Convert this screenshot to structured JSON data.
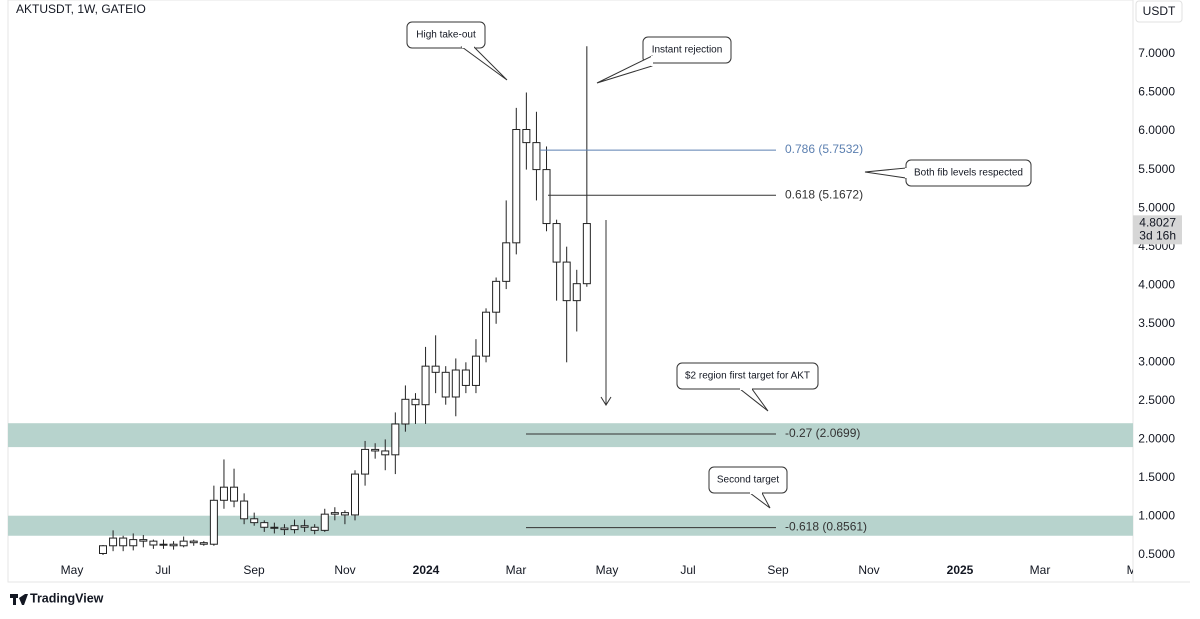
{
  "chart_data": {
    "type": "candlestick",
    "title": "AKTUSDT, 1W, GATEIO",
    "currency_button": "USDT",
    "last_price": 4.8027,
    "countdown": "3d 16h",
    "brand": "TradingView",
    "ylim": [
      0.15,
      7.7
    ],
    "yticks": [
      {
        "value": 0.5,
        "label": "0.5000"
      },
      {
        "value": 1.0,
        "label": "1.0000"
      },
      {
        "value": 1.5,
        "label": "1.5000"
      },
      {
        "value": 2.0,
        "label": "2.0000"
      },
      {
        "value": 2.5,
        "label": "2.5000"
      },
      {
        "value": 3.0,
        "label": "3.0000"
      },
      {
        "value": 3.5,
        "label": "3.5000"
      },
      {
        "value": 4.0,
        "label": "4.0000"
      },
      {
        "value": 4.5,
        "label": "4.5000"
      },
      {
        "value": 5.0,
        "label": "5.0000"
      },
      {
        "value": 5.5,
        "label": "5.5000"
      },
      {
        "value": 6.0,
        "label": "6.0000"
      },
      {
        "value": 6.5,
        "label": "6.5000"
      },
      {
        "value": 7.0,
        "label": "7.0000"
      }
    ],
    "x_labels": [
      "May",
      "Jul",
      "Sep",
      "Nov",
      "2024",
      "Mar",
      "May",
      "Jul",
      "Sep",
      "Nov",
      "2025",
      "Mar",
      "May"
    ],
    "grid": false,
    "candles": [
      {
        "open": 0.52,
        "high": 0.63,
        "low": 0.5,
        "close": 0.62
      },
      {
        "open": 0.62,
        "high": 0.82,
        "low": 0.55,
        "close": 0.72
      },
      {
        "open": 0.72,
        "high": 0.75,
        "low": 0.55,
        "close": 0.62
      },
      {
        "open": 0.62,
        "high": 0.78,
        "low": 0.56,
        "close": 0.7
      },
      {
        "open": 0.7,
        "high": 0.76,
        "low": 0.6,
        "close": 0.68
      },
      {
        "open": 0.68,
        "high": 0.7,
        "low": 0.58,
        "close": 0.63
      },
      {
        "open": 0.63,
        "high": 0.7,
        "low": 0.58,
        "close": 0.64
      },
      {
        "open": 0.64,
        "high": 0.68,
        "low": 0.57,
        "close": 0.62
      },
      {
        "open": 0.62,
        "high": 0.74,
        "low": 0.6,
        "close": 0.68
      },
      {
        "open": 0.68,
        "high": 0.7,
        "low": 0.62,
        "close": 0.66
      },
      {
        "open": 0.66,
        "high": 0.68,
        "low": 0.62,
        "close": 0.64
      },
      {
        "open": 0.64,
        "high": 1.4,
        "low": 0.62,
        "close": 1.21
      },
      {
        "open": 1.21,
        "high": 1.74,
        "low": 1.1,
        "close": 1.38
      },
      {
        "open": 1.38,
        "high": 1.62,
        "low": 1.12,
        "close": 1.2
      },
      {
        "open": 1.2,
        "high": 1.3,
        "low": 0.9,
        "close": 0.97
      },
      {
        "open": 0.97,
        "high": 1.05,
        "low": 0.88,
        "close": 0.92
      },
      {
        "open": 0.92,
        "high": 0.95,
        "low": 0.8,
        "close": 0.86
      },
      {
        "open": 0.86,
        "high": 0.92,
        "low": 0.78,
        "close": 0.85
      },
      {
        "open": 0.85,
        "high": 0.9,
        "low": 0.76,
        "close": 0.83
      },
      {
        "open": 0.83,
        "high": 0.96,
        "low": 0.78,
        "close": 0.88
      },
      {
        "open": 0.88,
        "high": 0.96,
        "low": 0.8,
        "close": 0.86
      },
      {
        "open": 0.86,
        "high": 0.9,
        "low": 0.77,
        "close": 0.82
      },
      {
        "open": 0.82,
        "high": 1.1,
        "low": 0.8,
        "close": 1.03
      },
      {
        "open": 1.03,
        "high": 1.12,
        "low": 0.95,
        "close": 1.05
      },
      {
        "open": 1.05,
        "high": 1.08,
        "low": 0.9,
        "close": 1.02
      },
      {
        "open": 1.02,
        "high": 1.6,
        "low": 0.95,
        "close": 1.55
      },
      {
        "open": 1.55,
        "high": 1.98,
        "low": 1.4,
        "close": 1.87
      },
      {
        "open": 1.87,
        "high": 1.95,
        "low": 1.75,
        "close": 1.85
      },
      {
        "open": 1.85,
        "high": 2.0,
        "low": 1.6,
        "close": 1.8
      },
      {
        "open": 1.8,
        "high": 2.35,
        "low": 1.55,
        "close": 2.2
      },
      {
        "open": 2.2,
        "high": 2.7,
        "low": 2.1,
        "close": 2.52
      },
      {
        "open": 2.52,
        "high": 2.6,
        "low": 2.2,
        "close": 2.45
      },
      {
        "open": 2.45,
        "high": 3.2,
        "low": 2.2,
        "close": 2.95
      },
      {
        "open": 2.95,
        "high": 3.35,
        "low": 2.6,
        "close": 2.87
      },
      {
        "open": 2.87,
        "high": 2.95,
        "low": 2.45,
        "close": 2.55
      },
      {
        "open": 2.55,
        "high": 3.05,
        "low": 2.3,
        "close": 2.9
      },
      {
        "open": 2.9,
        "high": 3.0,
        "low": 2.6,
        "close": 2.7
      },
      {
        "open": 2.7,
        "high": 3.3,
        "low": 2.6,
        "close": 3.08
      },
      {
        "open": 3.08,
        "high": 3.7,
        "low": 3.0,
        "close": 3.65
      },
      {
        "open": 3.65,
        "high": 4.1,
        "low": 3.5,
        "close": 4.05
      },
      {
        "open": 4.05,
        "high": 5.1,
        "low": 3.95,
        "close": 4.55
      },
      {
        "open": 4.55,
        "high": 6.3,
        "low": 4.4,
        "close": 6.02
      },
      {
        "open": 6.02,
        "high": 6.5,
        "low": 5.5,
        "close": 5.85
      },
      {
        "open": 5.85,
        "high": 6.25,
        "low": 5.1,
        "close": 5.5
      },
      {
        "open": 5.5,
        "high": 5.8,
        "low": 4.7,
        "close": 4.8
      },
      {
        "open": 4.8,
        "high": 4.85,
        "low": 3.8,
        "close": 4.3
      },
      {
        "open": 4.3,
        "high": 4.5,
        "low": 3.0,
        "close": 3.8
      },
      {
        "open": 3.8,
        "high": 4.2,
        "low": 3.4,
        "close": 4.02
      },
      {
        "open": 4.02,
        "high": 7.1,
        "low": 3.98,
        "close": 4.8
      }
    ],
    "fib_levels": [
      {
        "label": "0.786 (5.7532)",
        "value": 5.7532,
        "color": "#5b7fb0"
      },
      {
        "label": "0.618 (5.1672)",
        "value": 5.1672,
        "color": "#333333"
      },
      {
        "label": "-0.27 (2.0699)",
        "value": 2.0699,
        "color": "#333333"
      },
      {
        "label": "-0.618 (0.8561)",
        "value": 0.8561,
        "color": "#333333"
      }
    ],
    "zones": [
      {
        "top": 2.21,
        "bottom": 1.9,
        "color": "#b7d3cd"
      },
      {
        "top": 1.01,
        "bottom": 0.75,
        "color": "#b7d3cd"
      }
    ],
    "annotations": [
      "High take-out",
      "Instant rejection",
      "Both fib levels respected",
      "$2 region first target for AKT",
      "Second target"
    ]
  }
}
